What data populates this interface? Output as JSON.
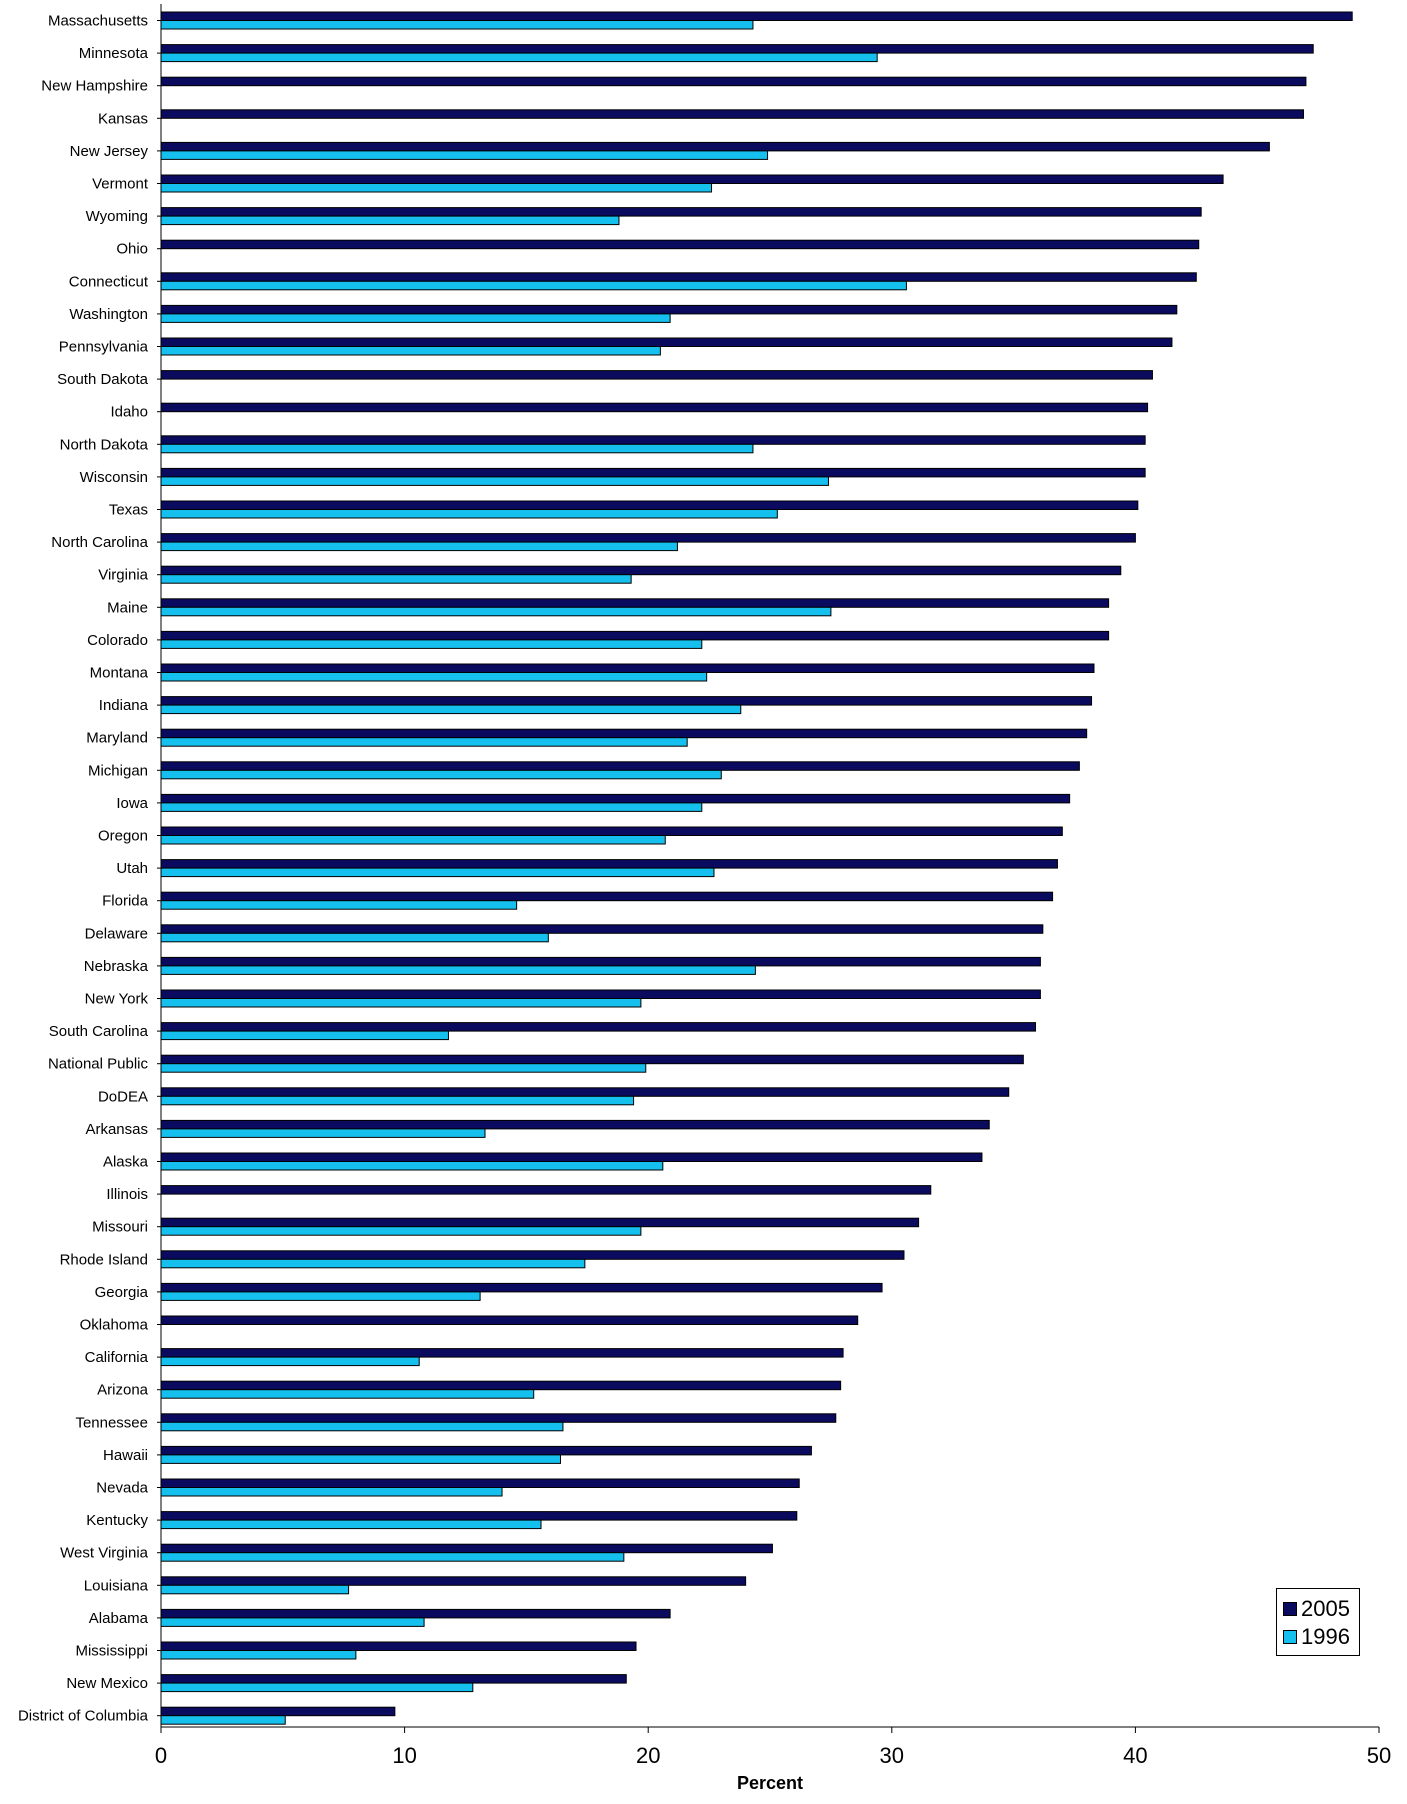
{
  "chart_data": {
    "type": "bar",
    "orientation": "horizontal",
    "title": "",
    "xlabel": "Percent",
    "ylabel": "",
    "xlim": [
      0,
      50
    ],
    "x_ticks": [
      "0",
      "10",
      "20",
      "30",
      "40",
      "50"
    ],
    "grid": false,
    "legend_position": "bottom-right",
    "categories": [
      "Massachusetts",
      "Minnesota",
      "New Hampshire",
      "Kansas",
      "New Jersey",
      "Vermont",
      "Wyoming",
      "Ohio",
      "Connecticut",
      "Washington",
      "Pennsylvania",
      "South Dakota",
      "Idaho",
      "North Dakota",
      "Wisconsin",
      "Texas",
      "North Carolina",
      "Virginia",
      "Maine",
      "Colorado",
      "Montana",
      "Indiana",
      "Maryland",
      "Michigan",
      "Iowa",
      "Oregon",
      "Utah",
      "Florida",
      "Delaware",
      "Nebraska",
      "New York",
      "South Carolina",
      "National Public",
      "DoDEA",
      "Arkansas",
      "Alaska",
      "Illinois",
      "Missouri",
      "Rhode Island",
      "Georgia",
      "Oklahoma",
      "California",
      "Arizona",
      "Tennessee",
      "Hawaii",
      "Nevada",
      "Kentucky",
      "West Virginia",
      "Louisiana",
      "Alabama",
      "Mississippi",
      "New Mexico",
      "District of Columbia"
    ],
    "series": [
      {
        "name": "2005",
        "color": "#0a0a5e",
        "values": [
          48.9,
          47.3,
          47.0,
          46.9,
          45.5,
          43.6,
          42.7,
          42.6,
          42.5,
          41.7,
          41.5,
          40.7,
          40.5,
          40.4,
          40.4,
          40.1,
          40.0,
          39.4,
          38.9,
          38.9,
          38.3,
          38.2,
          38.0,
          37.7,
          37.3,
          37.0,
          36.8,
          36.6,
          36.2,
          36.1,
          36.1,
          35.9,
          35.4,
          34.8,
          34.0,
          33.7,
          31.6,
          31.1,
          30.5,
          29.6,
          28.6,
          28.0,
          27.9,
          27.7,
          26.7,
          26.2,
          26.1,
          25.1,
          24.0,
          20.9,
          19.5,
          19.1,
          9.6
        ]
      },
      {
        "name": "1996",
        "color": "#16c0ee",
        "values": [
          24.3,
          29.4,
          null,
          null,
          24.9,
          22.6,
          18.8,
          null,
          30.6,
          20.9,
          20.5,
          null,
          null,
          24.3,
          27.4,
          25.3,
          21.2,
          19.3,
          27.5,
          22.2,
          22.4,
          23.8,
          21.6,
          23.0,
          22.2,
          20.7,
          22.7,
          14.6,
          15.9,
          24.4,
          19.7,
          11.8,
          19.9,
          19.4,
          13.3,
          20.6,
          null,
          19.7,
          17.4,
          13.1,
          null,
          10.6,
          15.3,
          16.5,
          16.4,
          14.0,
          15.6,
          19.0,
          7.7,
          10.8,
          8.0,
          12.8,
          5.1
        ]
      }
    ]
  }
}
